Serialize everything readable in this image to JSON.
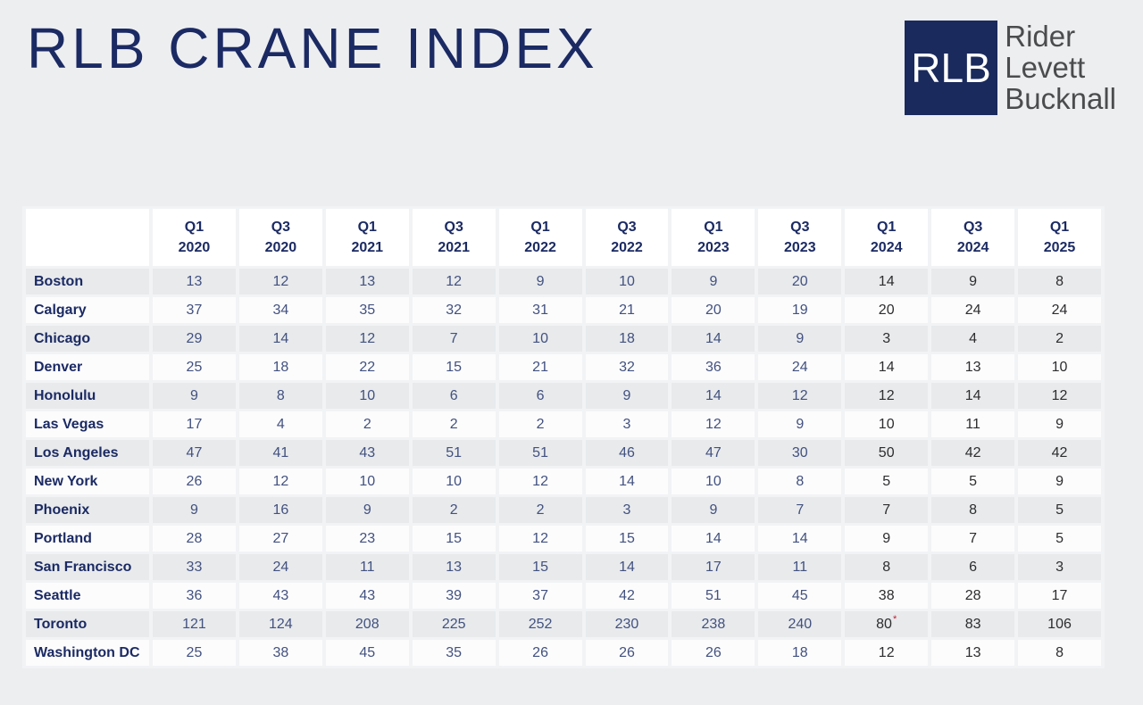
{
  "page": {
    "title": "RLB CRANE INDEX"
  },
  "logo": {
    "abbr": "RLB",
    "lines": [
      "Rider",
      "Levett",
      "Bucknall"
    ]
  },
  "colors": {
    "page_background": "#edeef0",
    "title_navy": "#1b2a63",
    "logo_navy": "#1b2a5c",
    "logo_text_gray": "#4b4c4e",
    "header_cell_bg": "#ffffff",
    "row_gray": "#e8eaec",
    "row_white": "#fcfcfd",
    "value_blue": "#42517f",
    "value_dark": "#2d2d2f",
    "footnote_red": "#c2202e"
  },
  "table_config": {
    "emphasized_columns_from": "Q1 2024",
    "footnote_marker": "*"
  },
  "chart_data": {
    "type": "table",
    "title": "RLB Crane Index",
    "columns": [
      "Q1 2020",
      "Q3 2020",
      "Q1 2021",
      "Q3 2021",
      "Q1 2022",
      "Q3 2022",
      "Q1 2023",
      "Q3 2023",
      "Q1 2024",
      "Q3 2024",
      "Q1 2025"
    ],
    "rows": [
      {
        "city": "Boston",
        "values": [
          13,
          12,
          13,
          12,
          9,
          10,
          9,
          20,
          14,
          9,
          8
        ]
      },
      {
        "city": "Calgary",
        "values": [
          37,
          34,
          35,
          32,
          31,
          21,
          20,
          19,
          20,
          24,
          24
        ]
      },
      {
        "city": "Chicago",
        "values": [
          29,
          14,
          12,
          7,
          10,
          18,
          14,
          9,
          3,
          4,
          2
        ]
      },
      {
        "city": "Denver",
        "values": [
          25,
          18,
          22,
          15,
          21,
          32,
          36,
          24,
          14,
          13,
          10
        ]
      },
      {
        "city": "Honolulu",
        "values": [
          9,
          8,
          10,
          6,
          6,
          9,
          14,
          12,
          12,
          14,
          12
        ]
      },
      {
        "city": "Las Vegas",
        "values": [
          17,
          4,
          2,
          2,
          2,
          3,
          12,
          9,
          10,
          11,
          9
        ]
      },
      {
        "city": "Los Angeles",
        "values": [
          47,
          41,
          43,
          51,
          51,
          46,
          47,
          30,
          50,
          42,
          42
        ]
      },
      {
        "city": "New York",
        "values": [
          26,
          12,
          10,
          10,
          12,
          14,
          10,
          8,
          5,
          5,
          9
        ]
      },
      {
        "city": "Phoenix",
        "values": [
          9,
          16,
          9,
          2,
          2,
          3,
          9,
          7,
          7,
          8,
          5
        ]
      },
      {
        "city": "Portland",
        "values": [
          28,
          27,
          23,
          15,
          12,
          15,
          14,
          14,
          9,
          7,
          5
        ]
      },
      {
        "city": "San Francisco",
        "values": [
          33,
          24,
          11,
          13,
          15,
          14,
          17,
          11,
          8,
          6,
          3
        ]
      },
      {
        "city": "Seattle",
        "values": [
          36,
          43,
          43,
          39,
          37,
          42,
          51,
          45,
          38,
          28,
          17
        ]
      },
      {
        "city": "Toronto",
        "values": [
          121,
          124,
          208,
          225,
          252,
          230,
          238,
          240,
          "80*",
          83,
          106
        ]
      },
      {
        "city": "Washington DC",
        "values": [
          25,
          38,
          45,
          35,
          26,
          26,
          26,
          18,
          12,
          13,
          8
        ]
      }
    ]
  }
}
